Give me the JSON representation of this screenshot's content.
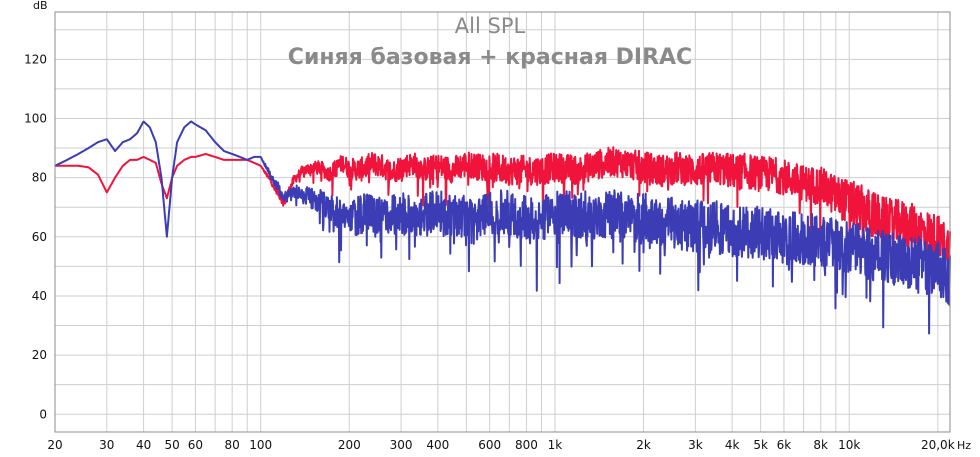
{
  "chart_data": {
    "type": "line",
    "title": "All SPL",
    "subtitle": "Синяя базовая + красная DIRAC",
    "ylabel": "dB",
    "xlabel": "Hz",
    "x_scale": "log",
    "xlim": [
      20,
      22000
    ],
    "ylim": [
      -6,
      136
    ],
    "grid": true,
    "y_ticks": [
      {
        "value": 0,
        "label": "0"
      },
      {
        "value": 20,
        "label": "20"
      },
      {
        "value": 40,
        "label": "40"
      },
      {
        "value": 60,
        "label": "60"
      },
      {
        "value": 80,
        "label": "80"
      },
      {
        "value": 100,
        "label": "100"
      },
      {
        "value": 120,
        "label": "120"
      }
    ],
    "x_ticks": [
      {
        "value": 20,
        "label": "20"
      },
      {
        "value": 30,
        "label": "30"
      },
      {
        "value": 40,
        "label": "40"
      },
      {
        "value": 50,
        "label": "50"
      },
      {
        "value": 60,
        "label": "60"
      },
      {
        "value": 80,
        "label": "80"
      },
      {
        "value": 100,
        "label": "100"
      },
      {
        "value": 200,
        "label": "200"
      },
      {
        "value": 300,
        "label": "300"
      },
      {
        "value": 400,
        "label": "400"
      },
      {
        "value": 600,
        "label": "600"
      },
      {
        "value": 800,
        "label": "800"
      },
      {
        "value": 1000,
        "label": "1k"
      },
      {
        "value": 2000,
        "label": "2k"
      },
      {
        "value": 3000,
        "label": "3k"
      },
      {
        "value": 4000,
        "label": "4k"
      },
      {
        "value": 5000,
        "label": "5k"
      },
      {
        "value": 6000,
        "label": "6k"
      },
      {
        "value": 8000,
        "label": "8k"
      },
      {
        "value": 10000,
        "label": "10k"
      },
      {
        "value": 20000,
        "label": "20,0k"
      }
    ],
    "minor_x_gridlines": [
      70,
      90,
      500,
      700,
      900,
      7000,
      9000
    ],
    "series": [
      {
        "color": "#f0143c",
        "x": [
          20,
          22,
          24,
          26,
          28,
          30,
          32,
          34,
          36,
          38,
          40,
          42,
          44,
          46,
          48,
          50,
          52,
          55,
          58,
          60,
          65,
          70,
          75,
          80,
          85,
          90,
          95,
          100,
          110,
          120,
          130,
          140,
          150,
          160,
          170,
          180,
          190,
          200,
          220,
          240,
          260,
          280,
          300,
          330,
          360,
          400,
          450,
          500,
          550,
          600,
          700,
          800,
          900,
          1000,
          1200,
          1400,
          1600,
          1800,
          2000,
          2300,
          2600,
          3000,
          3500,
          4000,
          4500,
          5000,
          5500,
          6000,
          7000,
          8000,
          9000,
          10000,
          11000,
          12000,
          13000,
          14000,
          15000,
          16000,
          17000,
          18000,
          19000,
          20000,
          21000,
          22000
        ],
        "values": [
          84,
          84,
          84,
          83.5,
          81,
          75,
          80,
          84,
          86,
          86,
          87,
          86,
          85,
          78,
          73,
          80,
          84,
          86,
          87,
          87,
          88,
          87,
          86,
          86,
          86,
          86,
          85,
          84,
          78,
          72,
          80,
          83,
          84,
          84,
          82,
          84,
          86,
          84,
          84,
          86,
          85,
          83,
          85,
          86,
          84,
          85,
          84,
          86,
          85,
          85,
          84,
          84,
          84,
          85,
          84,
          86,
          87,
          86,
          85,
          84,
          85,
          84,
          85,
          84,
          84,
          83,
          83,
          82,
          80,
          79,
          76,
          74,
          72,
          70,
          68,
          67,
          67,
          66,
          65,
          64,
          63,
          62,
          60,
          58
        ],
        "jitter": [
          0,
          0,
          0,
          0,
          0,
          0,
          0,
          0,
          0,
          0,
          0,
          0,
          0,
          0,
          0,
          0,
          0,
          0,
          0,
          0,
          0,
          0,
          0,
          0,
          0,
          0,
          0,
          0,
          2,
          3,
          3,
          4,
          4,
          5,
          5,
          6,
          6,
          7,
          8,
          8,
          8,
          8,
          8,
          8,
          8,
          9,
          9,
          9,
          9,
          10,
          10,
          10,
          10,
          10,
          10,
          10,
          10,
          10,
          11,
          11,
          11,
          11,
          11,
          12,
          12,
          12,
          12,
          12,
          12,
          13,
          14,
          15,
          16,
          16,
          16,
          16,
          16,
          16,
          16,
          16,
          16,
          16,
          16,
          16
        ]
      },
      {
        "color": "#3c3cb4",
        "x": [
          20,
          22,
          24,
          26,
          28,
          30,
          32,
          34,
          36,
          38,
          40,
          42,
          44,
          46,
          48,
          50,
          52,
          55,
          58,
          60,
          65,
          70,
          75,
          80,
          85,
          90,
          95,
          100,
          110,
          120,
          130,
          140,
          150,
          160,
          170,
          180,
          190,
          200,
          220,
          240,
          260,
          280,
          300,
          330,
          360,
          400,
          450,
          500,
          550,
          600,
          700,
          800,
          900,
          1000,
          1200,
          1400,
          1600,
          1800,
          2000,
          2300,
          2600,
          3000,
          3500,
          4000,
          4500,
          5000,
          5500,
          6000,
          7000,
          8000,
          9000,
          10000,
          11000,
          12000,
          13000,
          14000,
          15000,
          16000,
          17000,
          18000,
          19000,
          20000,
          21000,
          22000
        ],
        "values": [
          84,
          86,
          88,
          90,
          92,
          93,
          89,
          92,
          93,
          95,
          99,
          97,
          92,
          80,
          60,
          80,
          92,
          97,
          99,
          98,
          96,
          92,
          89,
          88,
          87,
          86,
          87,
          87,
          80,
          74,
          76,
          75,
          74,
          73,
          72,
          70,
          69,
          68,
          70,
          69,
          70,
          70,
          70,
          69,
          70,
          71,
          69,
          70,
          70,
          71,
          70,
          68,
          68,
          70,
          70,
          70,
          70,
          68,
          69,
          68,
          67,
          66,
          66,
          65,
          64,
          64,
          63,
          62,
          62,
          61,
          60,
          59,
          58,
          57,
          56,
          55,
          55,
          54,
          54,
          53,
          52,
          52,
          50,
          48
        ],
        "jitter": [
          0,
          0,
          0,
          0,
          0,
          0,
          0,
          0,
          0,
          0,
          0,
          0,
          0,
          0,
          0,
          0,
          0,
          0,
          0,
          0,
          0,
          0,
          0,
          0,
          0,
          0,
          0,
          0,
          3,
          4,
          5,
          6,
          7,
          8,
          9,
          10,
          11,
          12,
          14,
          14,
          14,
          14,
          14,
          14,
          14,
          14,
          15,
          15,
          15,
          15,
          16,
          16,
          16,
          16,
          16,
          17,
          17,
          17,
          17,
          17,
          17,
          18,
          18,
          18,
          18,
          18,
          18,
          18,
          18,
          18,
          18,
          18,
          18,
          18,
          18,
          18,
          18,
          18,
          18,
          18,
          18,
          18,
          18,
          18
        ]
      }
    ]
  }
}
